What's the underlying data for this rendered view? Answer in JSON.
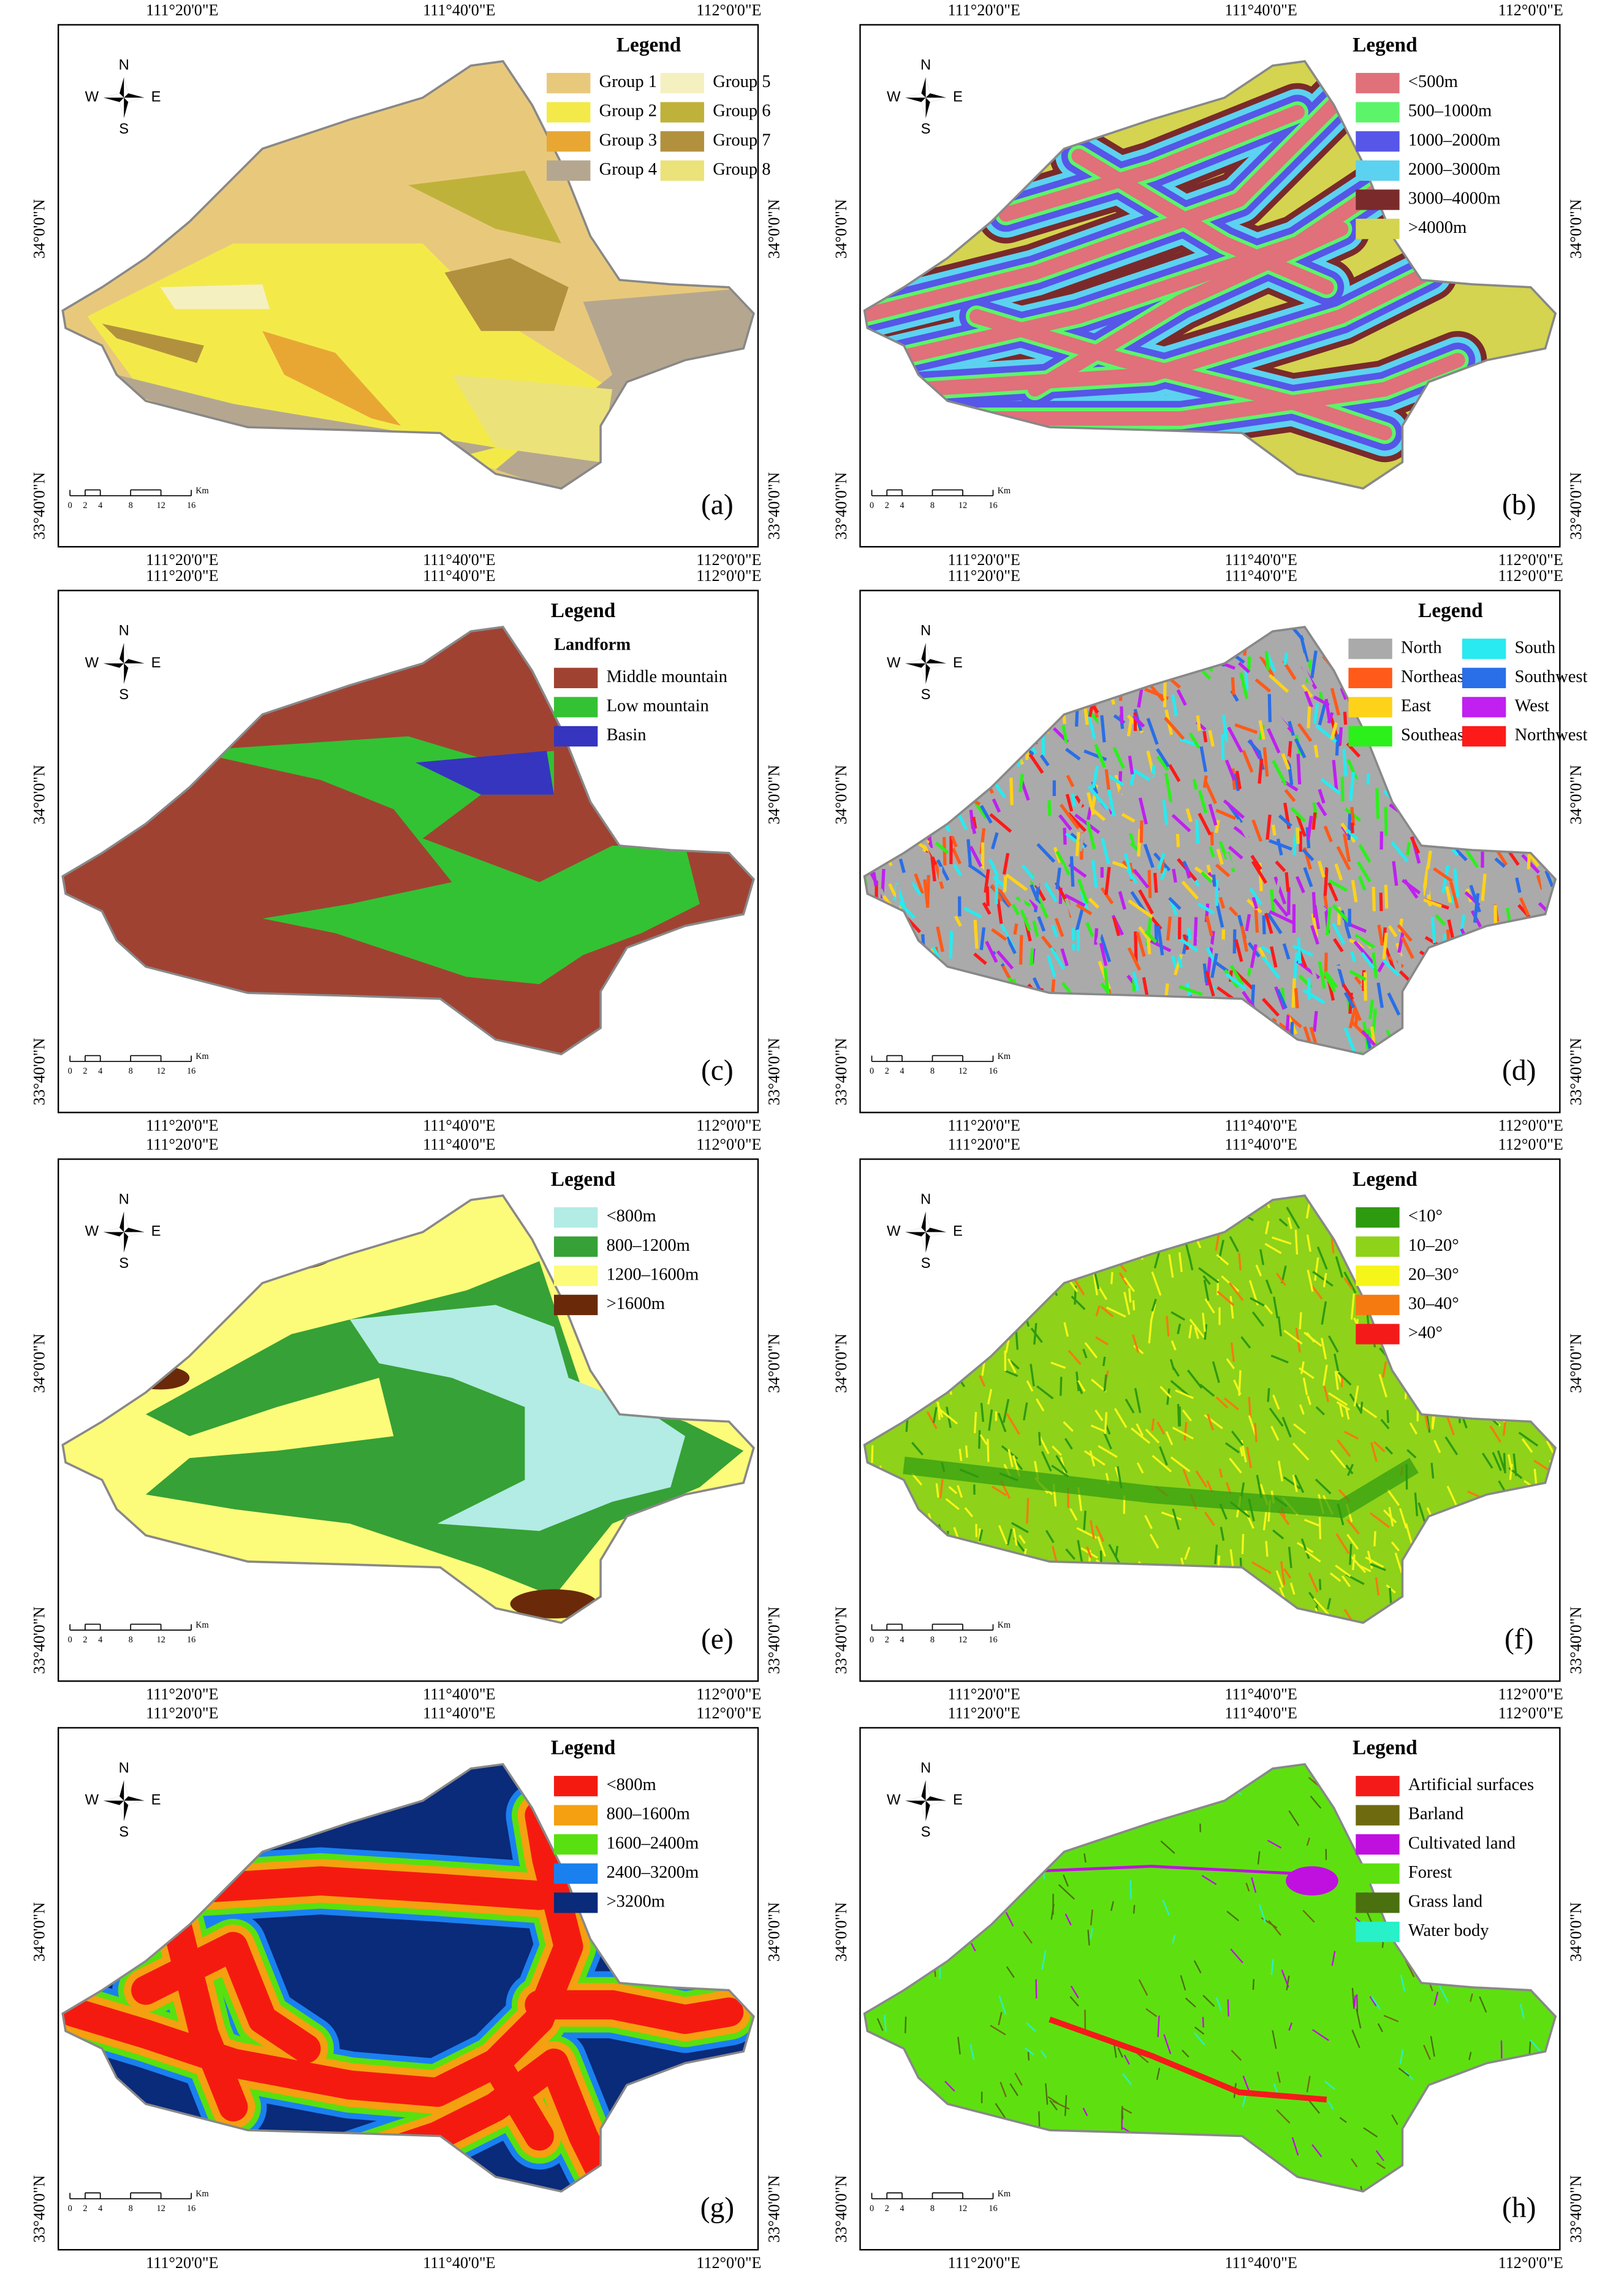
{
  "lon_labels": [
    "111°20'0\"E",
    "111°40'0\"E",
    "112°0'0\"E"
  ],
  "lat_labels": [
    "34°0'0\"N",
    "33°40'0\"N"
  ],
  "compass": [
    "N",
    "S",
    "W",
    "E"
  ],
  "scale_bar": {
    "ticks": [
      "0",
      "2",
      "4",
      "8",
      "12",
      "16"
    ],
    "unit": "Km"
  },
  "panels": [
    {
      "label": "(a)",
      "legend_title": "Legend",
      "legend_columns": 2,
      "items": [
        {
          "label": "Group 1",
          "color": "#e8c97c"
        },
        {
          "label": "Group 2",
          "color": "#f3ea4a"
        },
        {
          "label": "Group 3",
          "color": "#e8a733"
        },
        {
          "label": "Group 4",
          "color": "#b5a78f"
        },
        {
          "label": "Group 5",
          "color": "#f5f0c0"
        },
        {
          "label": "Group 6",
          "color": "#bfb23a"
        },
        {
          "label": "Group 7",
          "color": "#b2913e"
        },
        {
          "label": "Group 8",
          "color": "#ece27a"
        }
      ]
    },
    {
      "label": "(b)",
      "legend_title": "Legend",
      "legend_columns": 1,
      "items": [
        {
          "label": "<500m",
          "color": "#e0707a"
        },
        {
          "label": "500–1000m",
          "color": "#5cf56a"
        },
        {
          "label": "1000–2000m",
          "color": "#5656e8"
        },
        {
          "label": "2000–3000m",
          "color": "#5cd2f0"
        },
        {
          "label": "3000–4000m",
          "color": "#7a2a2a"
        },
        {
          "label": ">4000m",
          "color": "#d4d450"
        }
      ]
    },
    {
      "label": "(c)",
      "legend_title": "Legend",
      "legend_subtitle": "Landform",
      "legend_columns": 1,
      "items": [
        {
          "label": "Middle mountain",
          "color": "#a04232"
        },
        {
          "label": "Low mountain",
          "color": "#33c233"
        },
        {
          "label": "Basin",
          "color": "#3535c0"
        }
      ]
    },
    {
      "label": "(d)",
      "legend_title": "Legend",
      "legend_columns": 2,
      "items": [
        {
          "label": "North",
          "color": "#aaaaaa"
        },
        {
          "label": "Northeast",
          "color": "#ff5a1a"
        },
        {
          "label": "East",
          "color": "#ffd21a"
        },
        {
          "label": "Southeast",
          "color": "#2cf01a"
        },
        {
          "label": "South",
          "color": "#28eaf0"
        },
        {
          "label": "Southwest",
          "color": "#2a6ee8"
        },
        {
          "label": "West",
          "color": "#c020f0"
        },
        {
          "label": "Northwest",
          "color": "#ff1a1a"
        }
      ]
    },
    {
      "label": "(e)",
      "legend_title": "Legend",
      "legend_columns": 1,
      "items": [
        {
          "label": "<800m",
          "color": "#b2ece4"
        },
        {
          "label": "800–1200m",
          "color": "#36a136"
        },
        {
          "label": "1200–1600m",
          "color": "#fdfb7a"
        },
        {
          "label": ">1600m",
          "color": "#6a2a0a"
        }
      ]
    },
    {
      "label": "(f)",
      "legend_title": "Legend",
      "legend_columns": 1,
      "items": [
        {
          "label": "<10°",
          "color": "#2e9a10"
        },
        {
          "label": "10–20°",
          "color": "#8ed21a"
        },
        {
          "label": "20–30°",
          "color": "#f5f51a"
        },
        {
          "label": "30–40°",
          "color": "#f57a10"
        },
        {
          "label": ">40°",
          "color": "#f51a1a"
        }
      ]
    },
    {
      "label": "(g)",
      "legend_title": "Legend",
      "legend_columns": 1,
      "items": [
        {
          "label": "<800m",
          "color": "#f51a10"
        },
        {
          "label": "800–1600m",
          "color": "#f5a010"
        },
        {
          "label": "1600–2400m",
          "color": "#58e010"
        },
        {
          "label": "2400–3200m",
          "color": "#1a80f0"
        },
        {
          "label": ">3200m",
          "color": "#0a2a7a"
        }
      ]
    },
    {
      "label": "(h)",
      "legend_title": "Legend",
      "legend_columns": 1,
      "items": [
        {
          "label": "Artificial surfaces",
          "color": "#f51a1a"
        },
        {
          "label": "Barland",
          "color": "#6e6a10"
        },
        {
          "label": "Cultivated land",
          "color": "#c010e0"
        },
        {
          "label": "Forest",
          "color": "#5ee010"
        },
        {
          "label": "Grass land",
          "color": "#4a7010"
        },
        {
          "label": "Water body",
          "color": "#28f0c8"
        }
      ]
    }
  ]
}
